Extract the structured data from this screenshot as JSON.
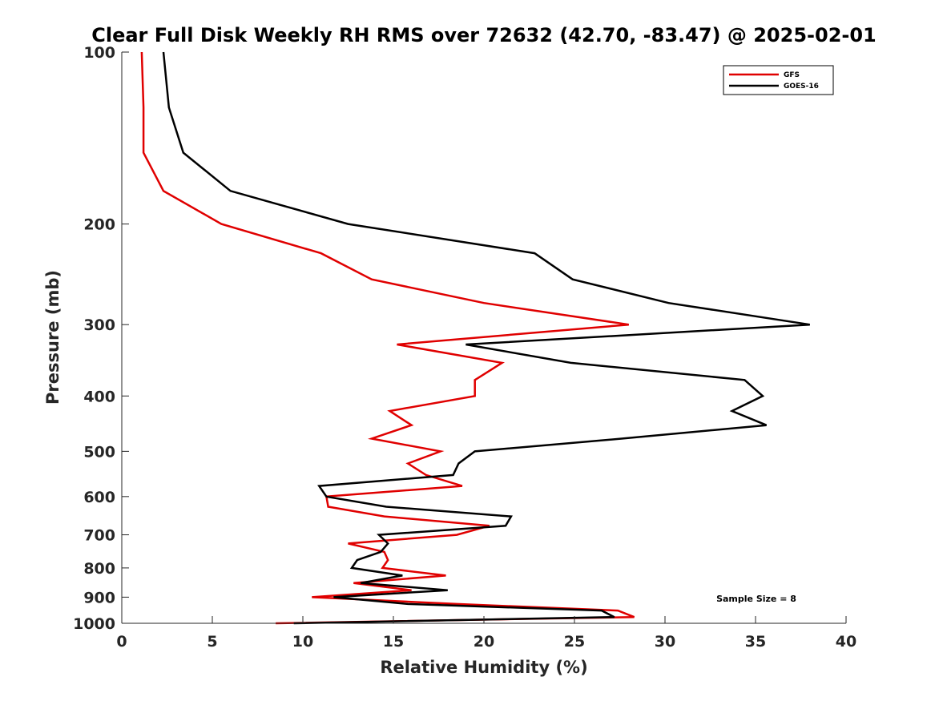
{
  "chart_data": {
    "type": "line",
    "title": "Clear Full Disk Weekly RH RMS over 72632 (42.70, -83.47) @ 2025-02-01",
    "xlabel": "Relative Humidity (%)",
    "ylabel": "Pressure (mb)",
    "xlim": [
      0,
      40
    ],
    "ylim": [
      100,
      1000
    ],
    "yscale": "log",
    "y_reversed": true,
    "xticks": [
      0,
      5,
      10,
      15,
      20,
      25,
      30,
      35,
      40
    ],
    "yticks": [
      100,
      200,
      300,
      400,
      500,
      600,
      700,
      800,
      900,
      1000
    ],
    "grid": false,
    "legend_position": "top-right",
    "annotation": "Sample Size = 8",
    "series": [
      {
        "name": "GFS",
        "color": "#e00000",
        "points": [
          [
            1.1,
            100
          ],
          [
            1.2,
            125
          ],
          [
            1.2,
            150
          ],
          [
            2.3,
            175
          ],
          [
            5.5,
            200
          ],
          [
            11,
            225
          ],
          [
            13.8,
            250
          ],
          [
            20,
            275
          ],
          [
            28,
            300
          ],
          [
            15.2,
            325
          ],
          [
            21,
            350
          ],
          [
            19.5,
            375
          ],
          [
            19.5,
            400
          ],
          [
            14.8,
            425
          ],
          [
            16,
            450
          ],
          [
            13.8,
            475
          ],
          [
            17.6,
            500
          ],
          [
            15.8,
            525
          ],
          [
            16.8,
            550
          ],
          [
            18.8,
            575
          ],
          [
            11.3,
            600
          ],
          [
            11.4,
            625
          ],
          [
            14.5,
            650
          ],
          [
            20.3,
            675
          ],
          [
            18.5,
            700
          ],
          [
            12.5,
            725
          ],
          [
            14.5,
            750
          ],
          [
            14.7,
            775
          ],
          [
            14.4,
            800
          ],
          [
            17.9,
            825
          ],
          [
            12.8,
            850
          ],
          [
            16,
            875
          ],
          [
            10.5,
            900
          ],
          [
            18.5,
            925
          ],
          [
            27.4,
            950
          ],
          [
            28.3,
            975
          ],
          [
            8.5,
            1000
          ]
        ]
      },
      {
        "name": "GOES-16",
        "color": "#000000",
        "points": [
          [
            2.3,
            100
          ],
          [
            2.6,
            125
          ],
          [
            3.4,
            150
          ],
          [
            6,
            175
          ],
          [
            12.5,
            200
          ],
          [
            22.8,
            225
          ],
          [
            24.9,
            250
          ],
          [
            30.2,
            275
          ],
          [
            38,
            300
          ],
          [
            19,
            325
          ],
          [
            24.8,
            350
          ],
          [
            34.4,
            375
          ],
          [
            35.4,
            400
          ],
          [
            33.7,
            425
          ],
          [
            35.6,
            450
          ],
          [
            27.6,
            475
          ],
          [
            19.5,
            500
          ],
          [
            18.6,
            525
          ],
          [
            18.3,
            550
          ],
          [
            10.9,
            575
          ],
          [
            11.3,
            600
          ],
          [
            14.6,
            625
          ],
          [
            21.5,
            650
          ],
          [
            21.2,
            675
          ],
          [
            14.2,
            700
          ],
          [
            14.7,
            725
          ],
          [
            14.3,
            750
          ],
          [
            13,
            775
          ],
          [
            12.7,
            800
          ],
          [
            15.5,
            825
          ],
          [
            13.2,
            850
          ],
          [
            18,
            875
          ],
          [
            11.7,
            900
          ],
          [
            15.8,
            925
          ],
          [
            26.5,
            950
          ],
          [
            27.2,
            975
          ],
          [
            9.5,
            1000
          ]
        ]
      }
    ]
  }
}
